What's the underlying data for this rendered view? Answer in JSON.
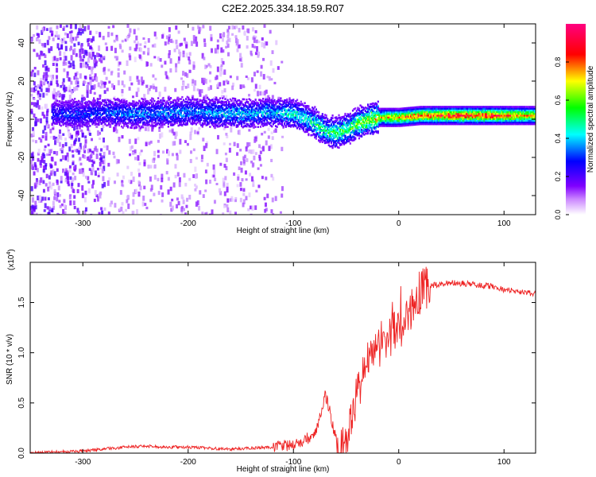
{
  "title": "C2E2.2025.334.18.59.R07",
  "chart_data": [
    {
      "type": "heatmap",
      "name": "spectrogram",
      "xlabel": "Height of straight line (km)",
      "ylabel": "Frequency (Hz)",
      "xlim": [
        -350,
        130
      ],
      "ylim": [
        -50,
        50
      ],
      "xticks": [
        -300,
        -200,
        -100,
        0,
        100
      ],
      "xtick_labels": [
        "-300",
        "-200",
        "-100",
        "0",
        "100"
      ],
      "yticks": [
        -40,
        -20,
        0,
        20,
        40
      ],
      "ytick_labels": [
        "-40",
        "-20",
        "0",
        "20",
        "40"
      ],
      "colorbar": {
        "label": "Normalized spectral amplitude",
        "range": [
          0,
          1
        ],
        "ticks": [
          0.0,
          0.2,
          0.4,
          0.6,
          0.8
        ],
        "tick_labels": [
          "0.0",
          "0.2",
          "0.4",
          "0.6",
          "0.8"
        ],
        "colormap": [
          "#ffffff",
          "#8000ff",
          "#0000ff",
          "#00ffff",
          "#00ff00",
          "#ffff00",
          "#ff0000",
          "#ff0080"
        ]
      },
      "signal_track": {
        "x": [
          -330,
          -300,
          -280,
          -250,
          -200,
          -150,
          -120,
          -100,
          -90,
          -80,
          -70,
          -60,
          -50,
          -40,
          -30,
          -20,
          -10,
          0,
          20,
          50,
          80,
          100,
          130
        ],
        "freq": [
          3,
          3,
          4,
          3,
          4,
          3,
          4,
          3,
          1,
          -2,
          -6,
          -7,
          -5,
          -2,
          0,
          1,
          1,
          1,
          2,
          2,
          2,
          2,
          2
        ],
        "amplitude": [
          0.3,
          0.35,
          0.35,
          0.4,
          0.4,
          0.45,
          0.45,
          0.5,
          0.5,
          0.55,
          0.55,
          0.6,
          0.6,
          0.65,
          0.7,
          0.75,
          0.8,
          0.85,
          0.9,
          0.95,
          0.95,
          0.9,
          0.8
        ]
      }
    },
    {
      "type": "line",
      "name": "snr",
      "xlabel": "Height of straight line (km)",
      "ylabel": "SNR (10 * v/v)",
      "y_multiplier_label": "(x10",
      "y_multiplier_exp": "4",
      "xlim": [
        -350,
        130
      ],
      "ylim": [
        0,
        1.9
      ],
      "xticks": [
        -300,
        -200,
        -100,
        0,
        100
      ],
      "xtick_labels": [
        "-300",
        "-200",
        "-100",
        "0",
        "100"
      ],
      "yticks": [
        0.0,
        0.5,
        1.0,
        1.5
      ],
      "ytick_labels": [
        "0.0",
        "0.5",
        "1.0",
        "1.5"
      ],
      "color": "#ee2222",
      "series": [
        {
          "name": "SNR",
          "x": [
            -350,
            -330,
            -300,
            -280,
            -260,
            -240,
            -220,
            -200,
            -180,
            -160,
            -140,
            -120,
            -100,
            -90,
            -80,
            -75,
            -70,
            -65,
            -60,
            -55,
            -50,
            -45,
            -40,
            -35,
            -30,
            -25,
            -20,
            -15,
            -10,
            -5,
            0,
            5,
            10,
            15,
            20,
            25,
            30,
            40,
            50,
            60,
            70,
            80,
            90,
            95,
            100,
            105,
            110,
            120,
            130
          ],
          "y": [
            0.0,
            0.01,
            0.02,
            0.04,
            0.06,
            0.07,
            0.06,
            0.06,
            0.05,
            0.04,
            0.05,
            0.06,
            0.08,
            0.12,
            0.2,
            0.35,
            0.6,
            0.4,
            0.15,
            0.06,
            0.08,
            0.3,
            0.55,
            0.75,
            0.9,
            1.05,
            1.1,
            1.0,
            1.15,
            1.2,
            1.25,
            1.3,
            1.4,
            1.5,
            1.6,
            1.64,
            1.67,
            1.68,
            1.7,
            1.69,
            1.68,
            1.67,
            1.66,
            1.64,
            1.63,
            1.62,
            1.61,
            1.6,
            1.59
          ]
        }
      ]
    }
  ]
}
